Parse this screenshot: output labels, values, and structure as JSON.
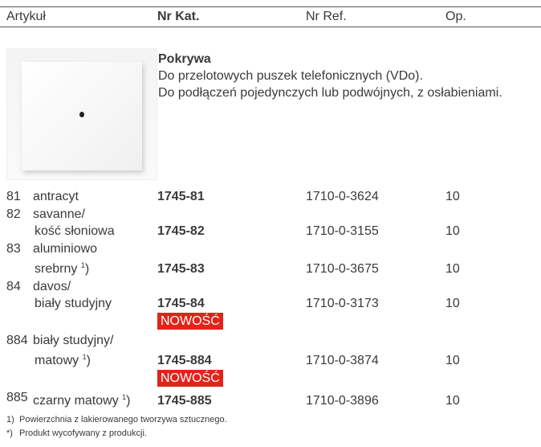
{
  "header": {
    "columns": [
      "Artykuł",
      "Nr Kat.",
      "Nr Ref.",
      "Op."
    ]
  },
  "product": {
    "title": "Pokrywa",
    "lines": [
      "Do przelotowych puszek telefonicznych (VDo).",
      "Do podłączeń pojedynczych lub podwójnych, z osłabieniami."
    ]
  },
  "rows": [
    {
      "code": "81",
      "name": [
        "antracyt"
      ],
      "cat": "1745-81",
      "ref": "1710-0-3624",
      "op": "10"
    },
    {
      "code": "82",
      "name": [
        "savanne/",
        "kość słoniowa"
      ],
      "cat": "1745-82",
      "ref": "1710-0-3155",
      "op": "10"
    },
    {
      "code": "83",
      "name": [
        "aluminiowo",
        "srebrny"
      ],
      "note": "1",
      "note_close": ")",
      "cat": "1745-83",
      "ref": "1710-0-3675",
      "op": "10"
    },
    {
      "code": "84",
      "name": [
        "davos/",
        "biały studyjny"
      ],
      "cat": "1745-84",
      "ref": "1710-0-3173",
      "op": "10",
      "badge": "NOWOŚĆ"
    },
    {
      "code": "884",
      "name": [
        "biały studyjny/",
        "matowy"
      ],
      "note": "1",
      "note_close": ")",
      "cat": "1745-884",
      "ref": "1710-0-3874",
      "op": "10",
      "badge": "NOWOŚĆ"
    },
    {
      "code": "885",
      "name": [
        "czarny matowy"
      ],
      "note": "1",
      "note_close": ")",
      "cat": "1745-885",
      "ref": "1710-0-3896",
      "op": "10"
    }
  ],
  "footnotes": [
    {
      "mark": "1)",
      "text": "Powierzchnia z lakierowanego tworzywa sztucznego."
    },
    {
      "mark": "*)",
      "text": "Produkt wycofywany z produkcji."
    }
  ]
}
